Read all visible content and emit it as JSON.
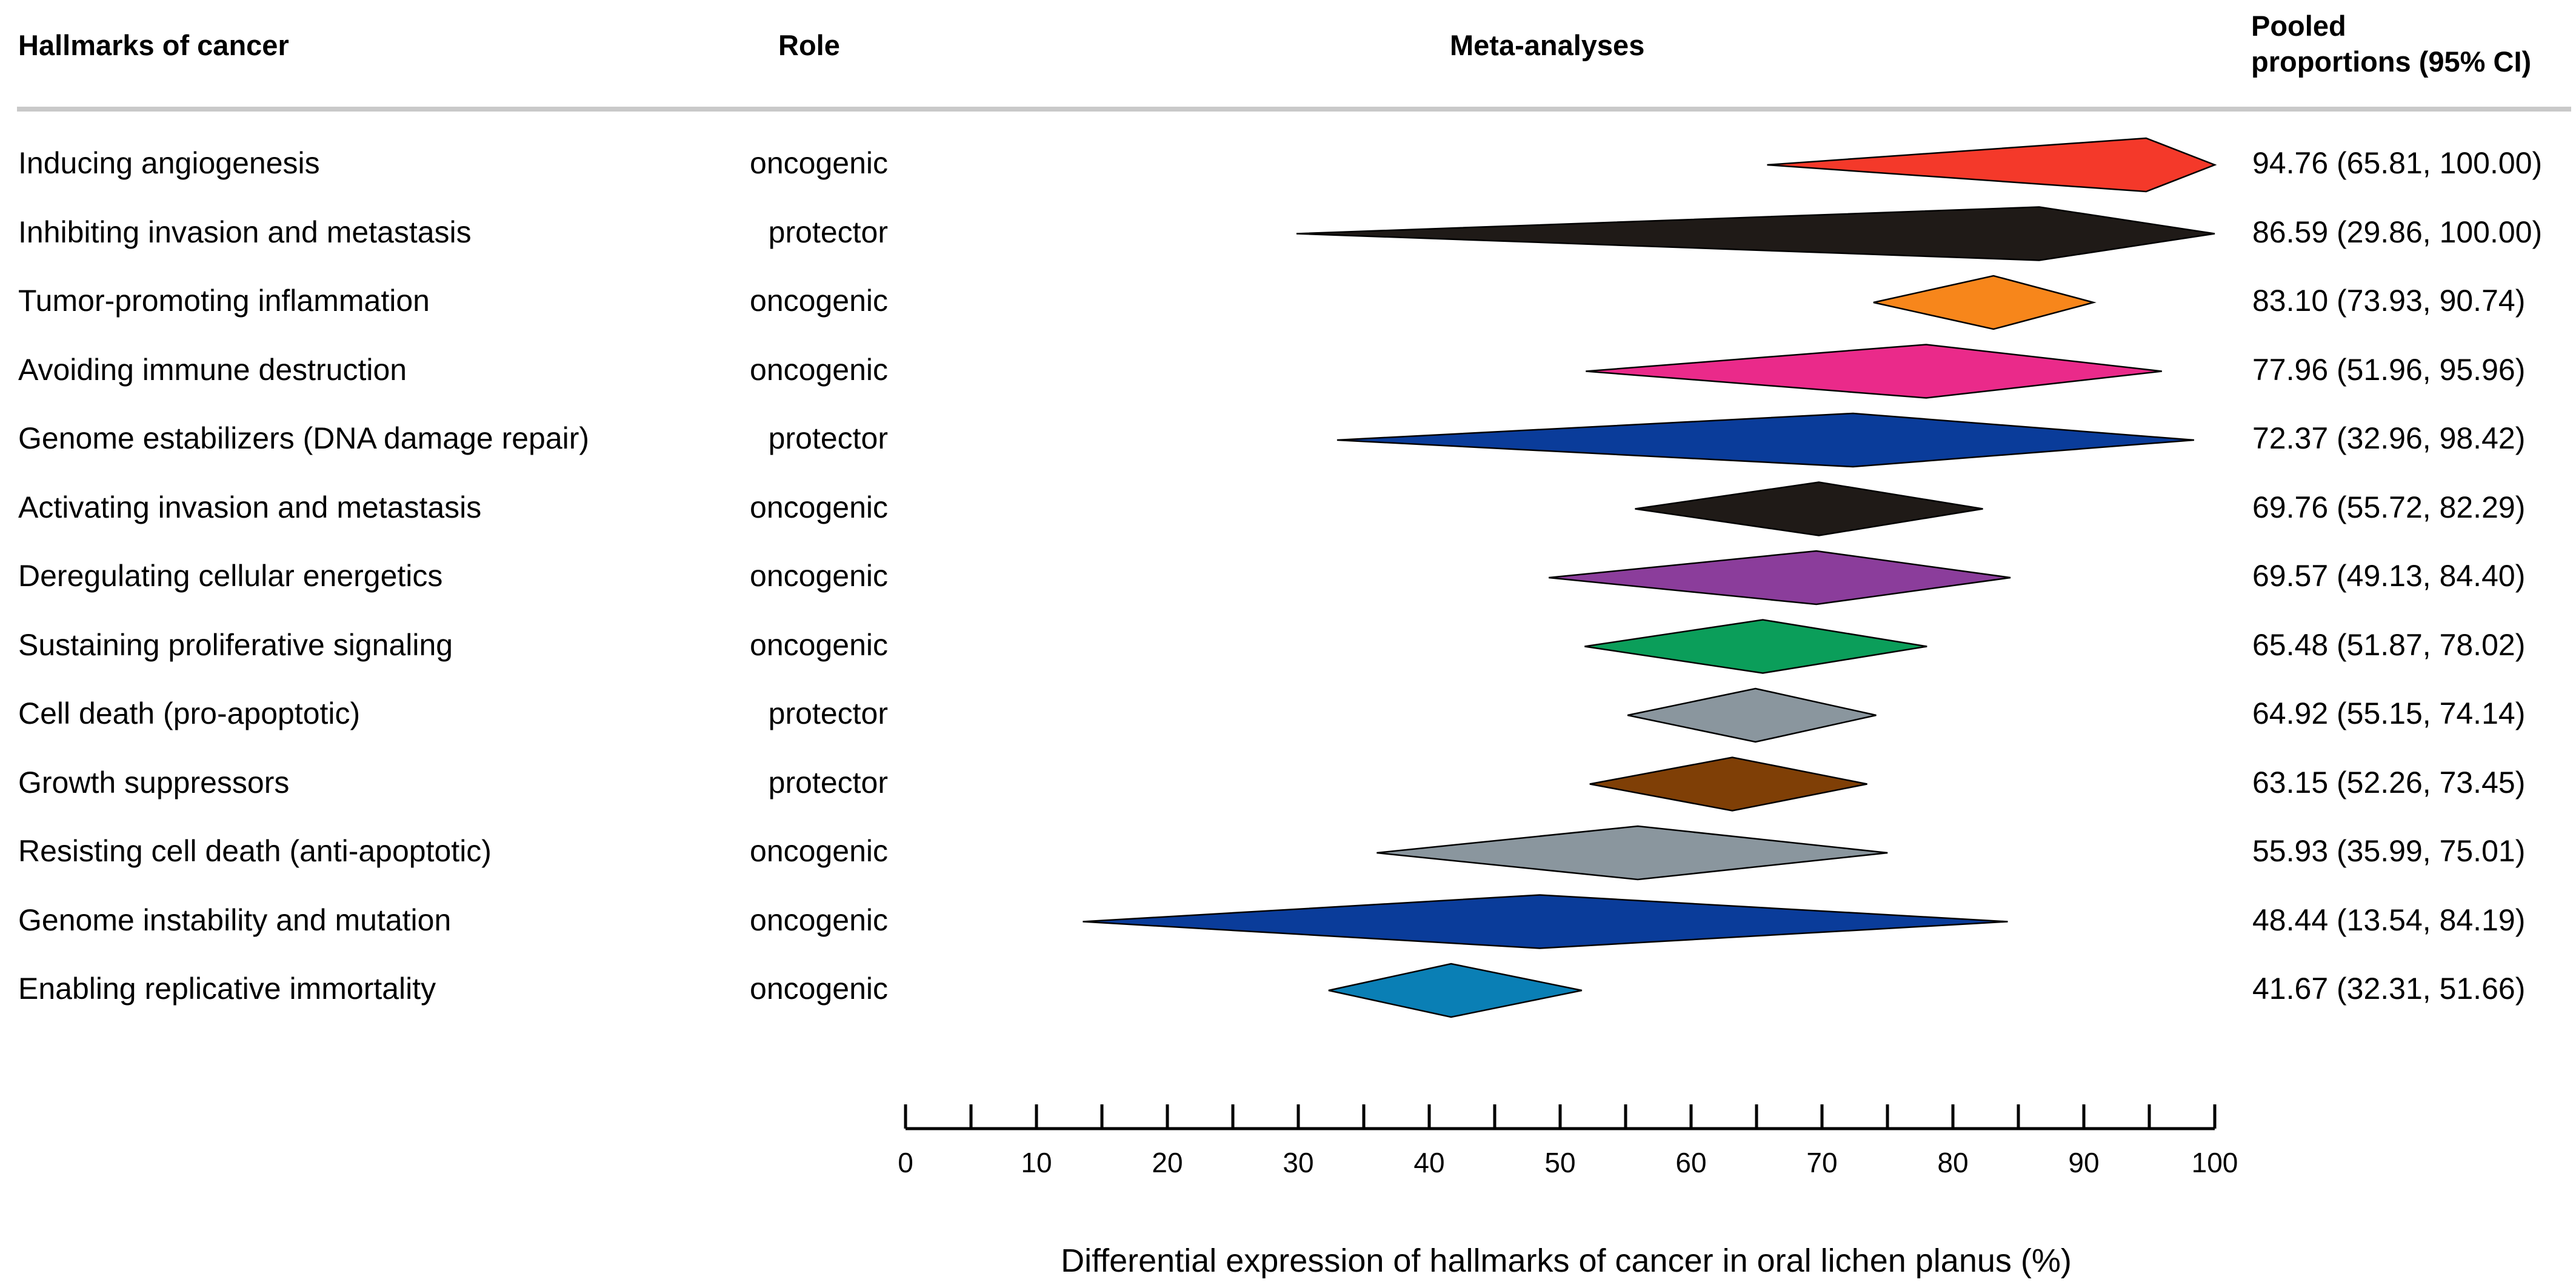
{
  "headers": {
    "hallmark": "Hallmarks of cancer",
    "role": "Role",
    "meta": "Meta-analyses",
    "pooled_line1": "Pooled",
    "pooled_line2": "proportions (95% CI)"
  },
  "chart_data": {
    "type": "forest",
    "title": "Meta-analyses",
    "xlabel": "Differential expression of hallmarks of cancer in oral lichen planus (%)",
    "xlim": [
      0,
      100
    ],
    "major_ticks": [
      0,
      10,
      20,
      30,
      40,
      50,
      60,
      70,
      80,
      90,
      100
    ],
    "minor_ticks": [
      5,
      15,
      25,
      35,
      45,
      55,
      65,
      75,
      85,
      95
    ],
    "tick_labels": [
      "0",
      "10",
      "20",
      "30",
      "40",
      "50",
      "60",
      "70",
      "80",
      "90",
      "100"
    ],
    "rows": [
      {
        "name": "Inducing angiogenesis",
        "role": "oncogenic",
        "estimate": 94.76,
        "lower": 65.81,
        "upper": 100.0,
        "ci_text": "94.76 (65.81, 100.00)",
        "color": "#F4392A"
      },
      {
        "name": "Inhibiting invasion and metastasis",
        "role": "protector",
        "estimate": 86.59,
        "lower": 29.86,
        "upper": 100.0,
        "ci_text": "86.59 (29.86, 100.00)",
        "color": "#1F1A17"
      },
      {
        "name": "Tumor-promoting inflammation",
        "role": "oncogenic",
        "estimate": 83.1,
        "lower": 73.93,
        "upper": 90.74,
        "ci_text": "83.10 (73.93, 90.74)",
        "color": "#F7861B"
      },
      {
        "name": "Avoiding immune destruction",
        "role": "oncogenic",
        "estimate": 77.96,
        "lower": 51.96,
        "upper": 95.96,
        "ci_text": "77.96 (51.96, 95.96)",
        "color": "#EA2A8A"
      },
      {
        "name": "Genome estabilizers (DNA damage repair)",
        "role": "protector",
        "estimate": 72.37,
        "lower": 32.96,
        "upper": 98.42,
        "ci_text": "72.37 (32.96, 98.42)",
        "color": "#0A3C9A"
      },
      {
        "name": "Activating invasion and metastasis",
        "role": "oncogenic",
        "estimate": 69.76,
        "lower": 55.72,
        "upper": 82.29,
        "ci_text": "69.76 (55.72, 82.29)",
        "color": "#1F1A17"
      },
      {
        "name": "Deregulating cellular energetics",
        "role": "oncogenic",
        "estimate": 69.57,
        "lower": 49.13,
        "upper": 84.4,
        "ci_text": "69.57 (49.13, 84.40)",
        "color": "#8B3D9B"
      },
      {
        "name": "Sustaining proliferative signaling",
        "role": "oncogenic",
        "estimate": 65.48,
        "lower": 51.87,
        "upper": 78.02,
        "ci_text": "65.48 (51.87, 78.02)",
        "color": "#0B9E5A"
      },
      {
        "name": "Cell death (pro-apoptotic)",
        "role": "protector",
        "estimate": 64.92,
        "lower": 55.15,
        "upper": 74.14,
        "ci_text": "64.92 (55.15, 74.14)",
        "color": "#8A969E"
      },
      {
        "name": "Growth suppressors",
        "role": "protector",
        "estimate": 63.15,
        "lower": 52.26,
        "upper": 73.45,
        "ci_text": "63.15 (52.26, 73.45)",
        "color": "#7F3F06"
      },
      {
        "name": "Resisting cell death (anti-apoptotic)",
        "role": "oncogenic",
        "estimate": 55.93,
        "lower": 35.99,
        "upper": 75.01,
        "ci_text": "55.93 (35.99, 75.01)",
        "color": "#8A969E"
      },
      {
        "name": "Genome instability and mutation",
        "role": "oncogenic",
        "estimate": 48.44,
        "lower": 13.54,
        "upper": 84.19,
        "ci_text": "48.44 (13.54, 84.19)",
        "color": "#0A3C9A"
      },
      {
        "name": "Enabling replicative immortality",
        "role": "oncogenic",
        "estimate": 41.67,
        "lower": 32.31,
        "upper": 51.66,
        "ci_text": "41.67 (32.31, 51.66)",
        "color": "#0A7FB5"
      }
    ]
  }
}
